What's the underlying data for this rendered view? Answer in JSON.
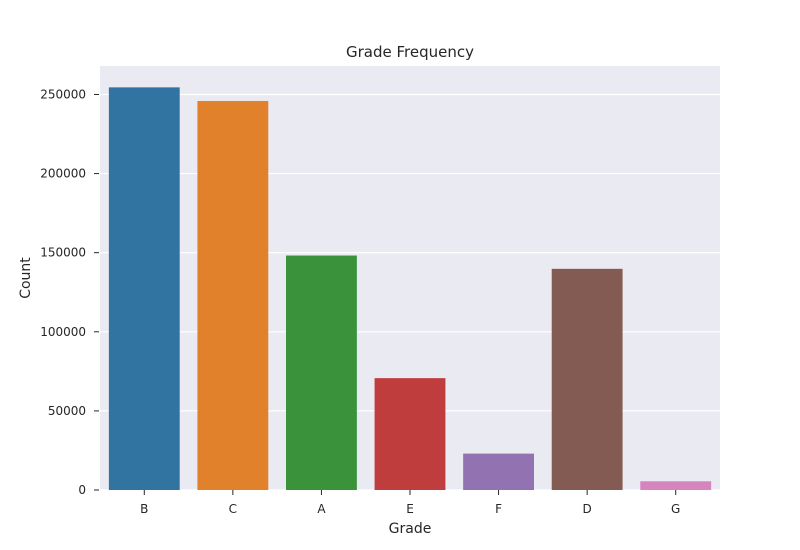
{
  "chart_data": {
    "type": "bar",
    "title": "Grade Frequency",
    "xlabel": "Grade",
    "ylabel": "Count",
    "categories": [
      "B",
      "C",
      "A",
      "E",
      "F",
      "D",
      "G"
    ],
    "values": [
      254500,
      245900,
      148200,
      70700,
      23000,
      139800,
      5500
    ],
    "colors": [
      "#3274a1",
      "#e1812c",
      "#3a923a",
      "#c03d3e",
      "#9372b2",
      "#845b53",
      "#d684bd"
    ],
    "ylim": [
      0,
      268000
    ],
    "yticks": [
      0,
      50000,
      100000,
      150000,
      200000,
      250000
    ],
    "grid": true,
    "background": "#eaeaf2"
  }
}
